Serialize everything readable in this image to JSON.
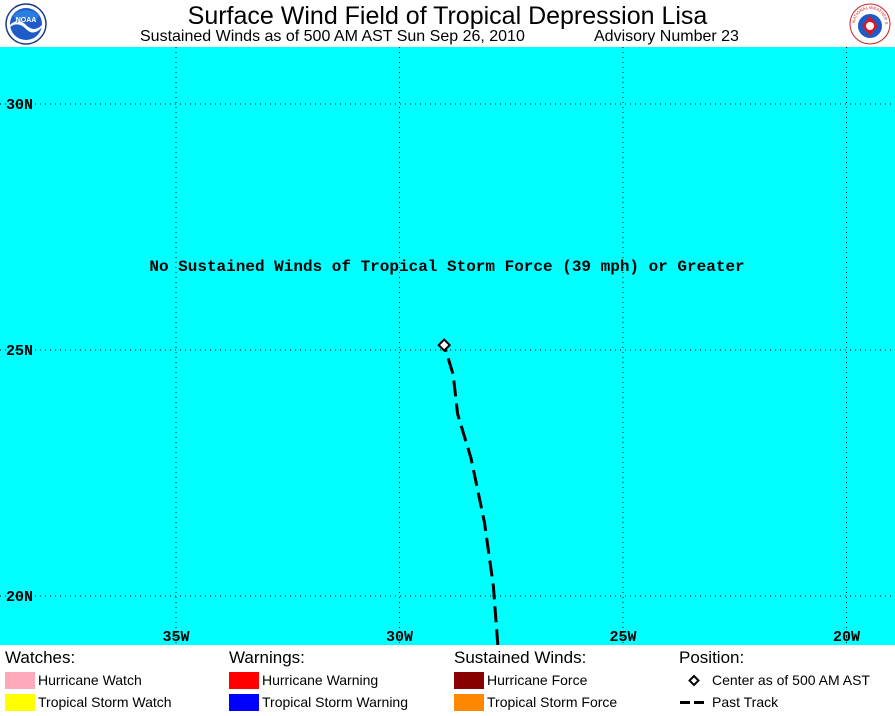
{
  "header": {
    "title": "Surface Wind Field of Tropical Depression Lisa",
    "subtitle": "Sustained Winds as of 500 AM AST Sun Sep 26, 2010",
    "advisory": "Advisory Number 23",
    "left_logo_icon": "noaa-logo-icon",
    "left_logo_text": "NOAA",
    "right_logo_icon": "national-weather-service-logo-icon",
    "right_logo_text": "NATIONAL WEATHER SERVICE"
  },
  "map": {
    "background_color": "#00ffff",
    "grid": true,
    "lat_labels": [
      "30N",
      "25N",
      "20N"
    ],
    "lon_labels": [
      "35W",
      "30W",
      "25W",
      "20W"
    ],
    "message": "No Sustained Winds of Tropical Storm Force (39 mph) or Greater",
    "storm_center": {
      "lat": 25.1,
      "lon": 29.0
    },
    "past_track": [
      {
        "lat": 19.0,
        "lon": 27.8
      },
      {
        "lat": 20.2,
        "lon": 27.9
      },
      {
        "lat": 21.5,
        "lon": 28.1
      },
      {
        "lat": 22.8,
        "lon": 28.4
      },
      {
        "lat": 23.7,
        "lon": 28.7
      },
      {
        "lat": 24.5,
        "lon": 28.8
      },
      {
        "lat": 25.1,
        "lon": 29.0
      }
    ]
  },
  "legend": {
    "watches": {
      "heading": "Watches:",
      "items": [
        {
          "label": "Hurricane Watch",
          "color": "#ffaabb"
        },
        {
          "label": "Tropical Storm Watch",
          "color": "#ffff00"
        }
      ]
    },
    "warnings": {
      "heading": "Warnings:",
      "items": [
        {
          "label": "Hurricane Warning",
          "color": "#ff0000"
        },
        {
          "label": "Tropical Storm Warning",
          "color": "#0000ff"
        }
      ]
    },
    "winds": {
      "heading": "Sustained Winds:",
      "items": [
        {
          "label": "Hurricane Force",
          "color": "#880000"
        },
        {
          "label": "Tropical Storm Force",
          "color": "#ff8800"
        }
      ]
    },
    "position": {
      "heading": "Position:",
      "items": [
        {
          "label": "Center as of 500 AM AST",
          "symbol": "diamond-icon"
        },
        {
          "label": "Past Track",
          "symbol": "dashed-line-icon"
        }
      ]
    }
  }
}
